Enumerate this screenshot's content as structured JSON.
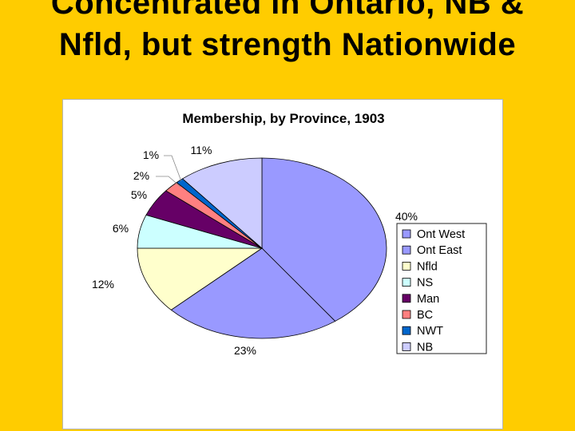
{
  "slide": {
    "title_line1": "Concentrated in Ontario, NB &",
    "title_line2": "Nfld, but strength Nationwide"
  },
  "chart_data": {
    "type": "pie",
    "title": "Membership, by Province, 1903",
    "slices": [
      {
        "name": "Ont West",
        "value": 40,
        "label": "40%",
        "color": "#9999FF"
      },
      {
        "name": "Ont East",
        "value": 23,
        "label": "23%",
        "color": "#9999FF"
      },
      {
        "name": "Nfld",
        "value": 12,
        "label": "12%",
        "color": "#FFFFCC"
      },
      {
        "name": "NS",
        "value": 6,
        "label": "6%",
        "color": "#CCFFFF"
      },
      {
        "name": "Man",
        "value": 5,
        "label": "5%",
        "color": "#660066"
      },
      {
        "name": "BC",
        "value": 2,
        "label": "2%",
        "color": "#FF8080"
      },
      {
        "name": "NWT",
        "value": 1,
        "label": "1%",
        "color": "#0066CC"
      },
      {
        "name": "NB",
        "value": 11,
        "label": "11%",
        "color": "#CCCCFF"
      }
    ],
    "legend": {
      "position": "right"
    }
  }
}
